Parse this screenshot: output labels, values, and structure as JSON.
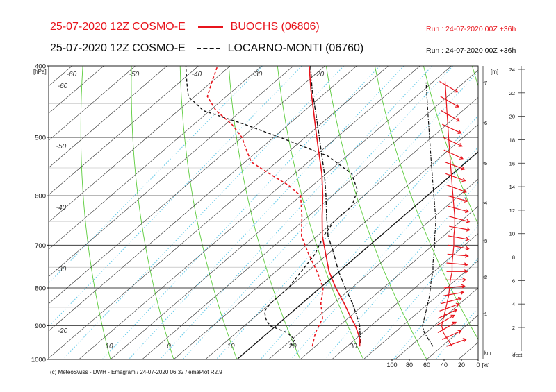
{
  "header": {
    "line1_run": "25-07-2020 12Z COSMO-E",
    "line1_station": "BUOCHS (06806)",
    "line1_runinfo": "Run : 24-07-2020 00Z +36h",
    "line2_run": "25-07-2020 12Z COSMO-E",
    "line2_station": "LOCARNO-MONTI (06760)",
    "line2_runinfo": "Run : 24-07-2020 00Z +36h"
  },
  "credit": "(c) MeteoSwiss - DWH - Emagram / 24-07-2020  06:32 / emaPlot R2.9",
  "colors": {
    "buochs": "#e8141c",
    "locarno": "#111111",
    "isotherm": "#303030",
    "dry_adiabat": "#5ccc3c",
    "mixing_ratio": "#5fc8e8",
    "isobar": "#404040"
  },
  "chart_data": {
    "type": "line",
    "yscale": "log",
    "ylim": [
      400,
      1000
    ],
    "xlim": [
      -40,
      40
    ],
    "ylabel": "[hPa]",
    "pressure_ticks": [
      "400",
      "500",
      "600",
      "700",
      "800",
      "900",
      "1000"
    ],
    "temp_bottom_ticks": [
      "10",
      "0",
      "10",
      "20",
      "30"
    ],
    "temp_skew_labels": [
      "-60",
      "-60",
      "-50",
      "-40",
      "-30",
      "-20",
      "-50",
      "-40",
      "-30",
      "-20"
    ],
    "wind_axis": {
      "unit": "[kt]",
      "ticks": [
        "100",
        "80",
        "60",
        "40",
        "20",
        "0"
      ]
    },
    "height_m_axis": {
      "unit": "[m]",
      "ticks": [
        "7",
        "6",
        "5",
        "4",
        "3",
        "2",
        "1"
      ]
    },
    "height_km_label": "km",
    "kfeet_axis": {
      "unit": "kfeet",
      "ticks": [
        "24",
        "22",
        "20",
        "18",
        "16",
        "14",
        "12",
        "10",
        "8",
        "6",
        "4",
        "2"
      ]
    },
    "series": [
      {
        "name": "BUOCHS (06806)",
        "temperature": {
          "p": [
            960,
            940,
            920,
            900,
            870,
            840,
            800,
            760,
            720,
            680,
            640,
            600,
            560,
            520,
            490,
            460,
            430,
            400
          ],
          "t": [
            17,
            15.8,
            14.2,
            12.5,
            9.6,
            6.7,
            2.5,
            -1.6,
            -5.3,
            -9.2,
            -12.8,
            -16.5,
            -20.7,
            -25.6,
            -29.5,
            -33.6,
            -38,
            -42.5
          ]
        },
        "dewpoint": {
          "p": [
            960,
            920,
            880,
            840,
            800,
            760,
            720,
            680,
            640,
            600,
            580,
            560,
            540,
            520,
            500,
            480,
            460,
            440,
            420,
            400
          ],
          "t": [
            9.5,
            7.5,
            6,
            3,
            0.5,
            -3.5,
            -8,
            -12.5,
            -16,
            -20,
            -24,
            -29,
            -34,
            -37,
            -40,
            -44,
            -49,
            -53,
            -55,
            -57
          ]
        }
      },
      {
        "name": "LOCARNO-MONTI (06760)",
        "temperature": {
          "p": [
            950,
            930,
            900,
            870,
            840,
            800,
            760,
            720,
            680,
            640,
            600,
            560,
            520,
            490,
            460,
            430,
            400
          ],
          "t": [
            16.5,
            15.2,
            13.2,
            10.7,
            8,
            4,
            -0.1,
            -4,
            -8.3,
            -12.1,
            -16,
            -20.3,
            -25.2,
            -29.1,
            -33.3,
            -37.8,
            -42.3
          ]
        },
        "dewpoint": {
          "p": [
            960,
            940,
            920,
            900,
            880,
            860,
            840,
            800,
            760,
            720,
            680,
            650,
            620,
            590,
            560,
            530,
            500,
            480,
            460,
            440,
            420,
            400
          ],
          "t": [
            6,
            5.5,
            3,
            -1,
            -3,
            -4.5,
            -5,
            -5,
            -6,
            -7,
            -9,
            -10,
            -10,
            -12,
            -16,
            -23,
            -34,
            -42,
            -51,
            -56,
            -59,
            -62
          ]
        }
      }
    ],
    "wind_profile_buochs": {
      "p": [
        960,
        940,
        920,
        900,
        880,
        860,
        840,
        820,
        800,
        780,
        760,
        740,
        720,
        700,
        680,
        660,
        640,
        620,
        600,
        580,
        560,
        540,
        520,
        500,
        480,
        460,
        440,
        420
      ],
      "dir": [
        250,
        245,
        240,
        240,
        245,
        250,
        255,
        260,
        265,
        270,
        270,
        275,
        275,
        280,
        280,
        280,
        285,
        285,
        285,
        290,
        290,
        290,
        295,
        295,
        295,
        300,
        300,
        300
      ],
      "kt": [
        30,
        35,
        40,
        42,
        40,
        38,
        36,
        34,
        33,
        32,
        30,
        30,
        29,
        28,
        28,
        27,
        27,
        28,
        29,
        30,
        31,
        32,
        33,
        34,
        35,
        36,
        37,
        38
      ]
    }
  }
}
